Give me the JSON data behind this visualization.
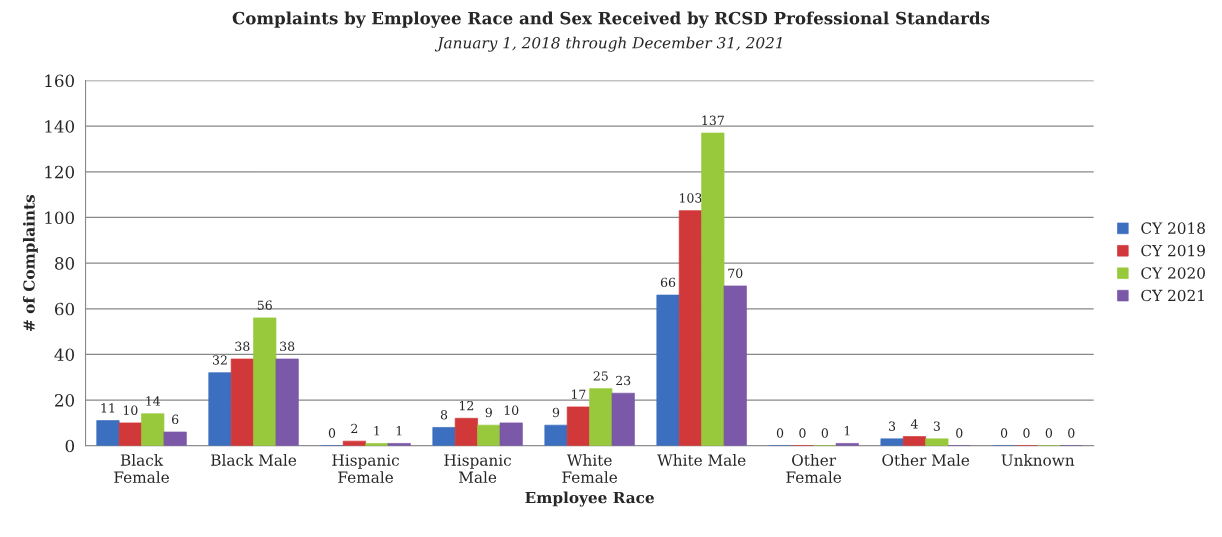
{
  "chart_data": {
    "type": "bar",
    "title": "Complaints by Employee Race and Sex Received by RCSD Professional Standards",
    "subtitle": "January 1, 2018 through December 31, 2021",
    "xlabel": "Employee Race",
    "ylabel": "# of Complaints",
    "categories": [
      "Black\nFemale",
      "Black Male",
      "Hispanic\nFemale",
      "Hispanic\nMale",
      "White\nFemale",
      "White Male",
      "Other\nFemale",
      "Other Male",
      "Unknown"
    ],
    "series": [
      {
        "name": "CY 2018",
        "color": "#3d6fc0",
        "values": [
          11,
          32,
          0,
          8,
          9,
          66,
          0,
          3,
          0
        ]
      },
      {
        "name": "CY 2019",
        "color": "#d0383a",
        "values": [
          10,
          38,
          2,
          12,
          17,
          103,
          0,
          4,
          0
        ]
      },
      {
        "name": "CY 2020",
        "color": "#98c93c",
        "values": [
          14,
          56,
          1,
          9,
          25,
          137,
          0,
          3,
          0
        ]
      },
      {
        "name": "CY 2021",
        "color": "#7b58a8",
        "values": [
          6,
          38,
          1,
          10,
          23,
          70,
          1,
          0,
          0
        ]
      }
    ],
    "ylim": [
      0,
      160
    ],
    "yticks": [
      0,
      20,
      40,
      60,
      80,
      100,
      120,
      140,
      160
    ],
    "grid": "y",
    "legend": "right",
    "data_labels": true
  }
}
